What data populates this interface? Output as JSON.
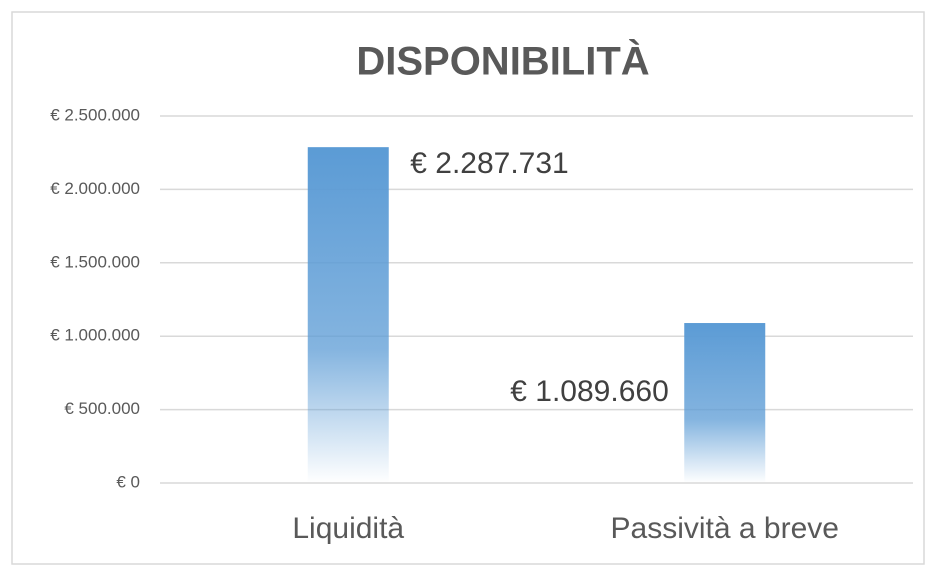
{
  "chart_data": {
    "type": "bar",
    "title": "DISPONIBILITÀ",
    "categories": [
      "Liquidità",
      "Passività a breve"
    ],
    "values": [
      2287731,
      1089660
    ],
    "value_labels": [
      "€ 2.287.731",
      "€ 1.089.660"
    ],
    "color": "#5b9bd5",
    "ylim": [
      0,
      2500000
    ],
    "yticks": [
      {
        "value": 0,
        "label": "€ 0"
      },
      {
        "value": 500000,
        "label": "€ 500.000"
      },
      {
        "value": 1000000,
        "label": "€ 1.000.000"
      },
      {
        "value": 1500000,
        "label": "€ 1.500.000"
      },
      {
        "value": 2000000,
        "label": "€ 2.000.000"
      },
      {
        "value": 2500000,
        "label": "€ 2.500.000"
      }
    ],
    "grid": true
  }
}
